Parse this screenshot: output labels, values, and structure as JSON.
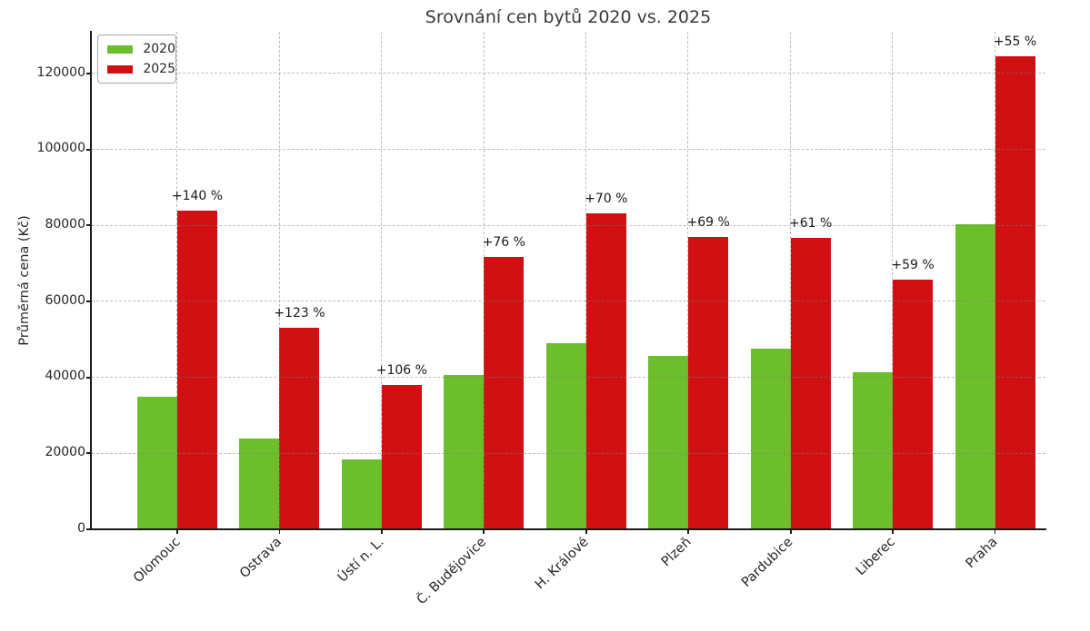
{
  "chart_data": {
    "type": "bar",
    "title": "Srovnání cen bytů 2020 vs. 2025",
    "ylabel": "Průměrná cena (Kč)",
    "xlabel": "",
    "categories": [
      "Olomouc",
      "Ostrava",
      "Ústí n. L.",
      "Č. Budějovice",
      "H. Králové",
      "Plzeň",
      "Pardubice",
      "Liberec",
      "Praha"
    ],
    "series": [
      {
        "name": "2020",
        "color": "#6cbf2b",
        "values": [
          35000,
          23800,
          18400,
          40700,
          49000,
          45600,
          47600,
          41400,
          80300
        ]
      },
      {
        "name": "2025",
        "color": "#d01013",
        "values": [
          84000,
          53000,
          37900,
          71600,
          83300,
          77000,
          76700,
          65800,
          124500
        ]
      }
    ],
    "annotation_series": "2025",
    "annotations": [
      "+140 %",
      "+123 %",
      "+106 %",
      "+76 %",
      "+70 %",
      "+69 %",
      "+61 %",
      "+59 %",
      "+55 %"
    ],
    "yticks": [
      0,
      20000,
      40000,
      60000,
      80000,
      100000,
      120000
    ],
    "ytick_labels": [
      "0",
      "20000",
      "40000",
      "60000",
      "80000",
      "100000",
      "120000"
    ],
    "ylim": [
      0,
      131000
    ],
    "grid": true,
    "grid_style": "dashed",
    "legend": {
      "position": "upper-left"
    },
    "colors": {
      "axis": "#1a1a1a",
      "text": "#262626",
      "grid_over_bars": "rgba(125,125,125,0.5)",
      "background": "#ffffff"
    }
  }
}
